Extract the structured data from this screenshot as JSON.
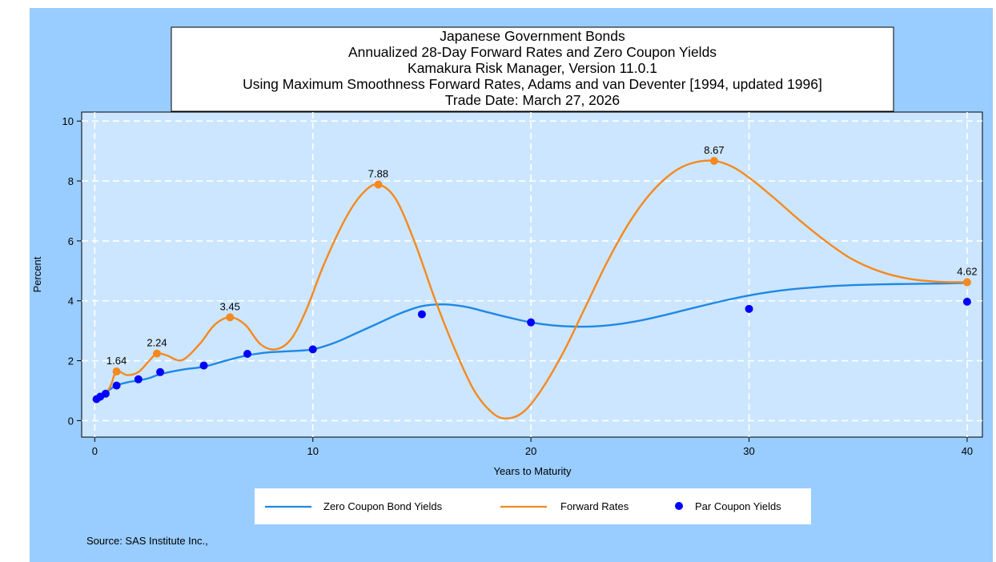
{
  "chart_data": {
    "type": "line",
    "title_lines": [
      "Japanese Government Bonds",
      "Annualized 28-Day Forward Rates and Zero Coupon Yields",
      "Kamakura Risk Manager, Version 11.0.1",
      "Using Maximum Smoothness Forward Rates, Adams and van Deventer [1994, updated 1996]",
      "Trade Date: March 27, 2026"
    ],
    "xlabel": "Years to Maturity",
    "ylabel": "Percent",
    "xlim": [
      -0.6,
      40.7
    ],
    "ylim": [
      -0.55,
      10.3
    ],
    "xticks": [
      0,
      10,
      20,
      30,
      40
    ],
    "yticks": [
      0,
      2,
      4,
      6,
      8,
      10
    ],
    "grid": true,
    "legend_position": "bottom",
    "colors": {
      "outer_background": "#99ccff",
      "plot_background": "#cce6ff",
      "zero_coupon": "#1e88e5",
      "forward": "#f5891f",
      "par": "#0000ff",
      "gridline": "#ffffff"
    },
    "series": [
      {
        "name": "Zero Coupon Bond Yields",
        "kind": "line",
        "x": [
          0,
          0.25,
          0.5,
          0.75,
          1,
          1.5,
          2,
          2.5,
          3,
          4,
          5,
          6,
          7,
          8,
          9,
          10,
          11,
          12,
          13,
          14,
          15,
          16,
          17,
          18,
          19,
          20,
          21,
          22,
          23,
          24,
          25,
          26,
          27,
          28,
          29,
          30,
          31,
          32,
          33,
          34,
          35,
          36,
          37,
          38,
          39,
          40
        ],
        "y": [
          0.72,
          0.82,
          0.92,
          1.07,
          1.18,
          1.28,
          1.34,
          1.42,
          1.55,
          1.7,
          1.8,
          2.0,
          2.18,
          2.28,
          2.32,
          2.38,
          2.6,
          2.92,
          3.25,
          3.58,
          3.82,
          3.88,
          3.8,
          3.62,
          3.44,
          3.28,
          3.18,
          3.14,
          3.15,
          3.22,
          3.34,
          3.5,
          3.68,
          3.86,
          4.03,
          4.18,
          4.3,
          4.39,
          4.45,
          4.5,
          4.53,
          4.55,
          4.56,
          4.57,
          4.58,
          4.6
        ]
      },
      {
        "name": "Forward Rates",
        "kind": "line",
        "x": [
          0,
          0.25,
          0.5,
          0.75,
          1,
          1.5,
          2,
          2.5,
          2.85,
          3.3,
          4,
          4.8,
          5.5,
          6.2,
          6.9,
          7.6,
          8.3,
          9,
          9.7,
          10.5,
          11.5,
          12.3,
          13,
          13.8,
          14.7,
          15.6,
          16.5,
          17.4,
          18.3,
          19,
          19.7,
          20.5,
          21.5,
          22.5,
          23.5,
          24.5,
          25.5,
          26.5,
          27.4,
          28.4,
          29.3,
          30.2,
          31.2,
          32.3,
          33.5,
          34.7,
          36,
          37.3,
          38.6,
          40
        ],
        "y": [
          0.72,
          0.75,
          0.88,
          1.2,
          1.64,
          1.52,
          1.62,
          2.0,
          2.24,
          2.18,
          2.02,
          2.55,
          3.2,
          3.45,
          3.2,
          2.55,
          2.38,
          2.72,
          3.7,
          5.2,
          6.75,
          7.6,
          7.88,
          7.4,
          5.9,
          4.05,
          2.4,
          1.0,
          0.22,
          0.08,
          0.32,
          1.05,
          2.3,
          3.8,
          5.3,
          6.6,
          7.6,
          8.28,
          8.6,
          8.67,
          8.45,
          8.0,
          7.4,
          6.7,
          6.0,
          5.4,
          4.98,
          4.74,
          4.64,
          4.62
        ]
      },
      {
        "name": "Par Coupon Yields",
        "kind": "scatter",
        "x": [
          0.083,
          0.25,
          0.5,
          1,
          2,
          3,
          5,
          7,
          10,
          15,
          20,
          30,
          40
        ],
        "y": [
          0.72,
          0.8,
          0.9,
          1.17,
          1.38,
          1.62,
          1.84,
          2.23,
          2.38,
          3.55,
          3.28,
          3.73,
          3.97
        ]
      }
    ],
    "forward_labeled_points": [
      {
        "x": 1.0,
        "y": 1.64,
        "label": "1.64"
      },
      {
        "x": 2.85,
        "y": 2.24,
        "label": "2.24"
      },
      {
        "x": 6.2,
        "y": 3.45,
        "label": "3.45"
      },
      {
        "x": 13.0,
        "y": 7.88,
        "label": "7.88"
      },
      {
        "x": 28.4,
        "y": 8.67,
        "label": "8.67"
      },
      {
        "x": 40.0,
        "y": 4.62,
        "label": "4.62"
      }
    ]
  },
  "legend": {
    "items": [
      {
        "label": "Zero Coupon Bond Yields",
        "marker": "line"
      },
      {
        "label": "Forward Rates",
        "marker": "line"
      },
      {
        "label": "Par Coupon Yields",
        "marker": "dot"
      }
    ]
  },
  "footer": {
    "source": "Source: SAS Institute Inc.,"
  }
}
